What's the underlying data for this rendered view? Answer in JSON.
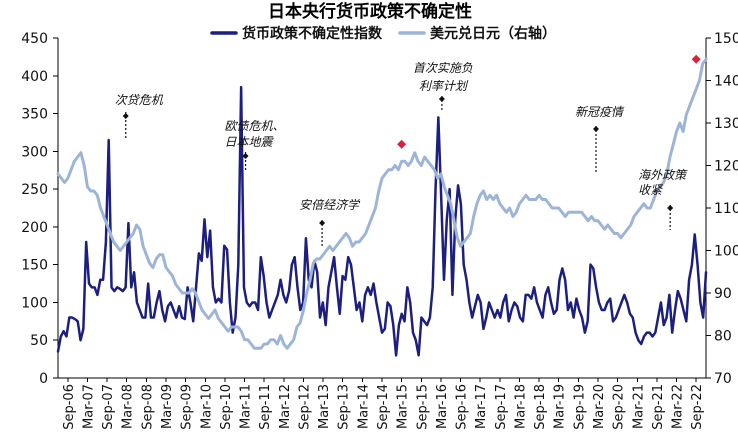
{
  "chart_data": {
    "type": "line",
    "title": "日本央行货币政策不确定性",
    "xlabel": "",
    "ylabel": "",
    "left_axis": {
      "ylim": [
        0,
        450
      ],
      "ticks": [
        0,
        50,
        100,
        150,
        200,
        250,
        300,
        350,
        400,
        450
      ]
    },
    "right_axis": {
      "ylim": [
        70,
        150
      ],
      "ticks": [
        70,
        80,
        90,
        100,
        110,
        120,
        130,
        140,
        150
      ]
    },
    "x_tick_labels": [
      "Sep-06",
      "Mar-07",
      "Sep-07",
      "Mar-08",
      "Sep-08",
      "Mar-09",
      "Sep-09",
      "Mar-10",
      "Sep-10",
      "Mar-11",
      "Sep-11",
      "Mar-12",
      "Sep-12",
      "Mar-13",
      "Sep-13",
      "Mar-14",
      "Sep-14",
      "Mar-15",
      "Sep-15",
      "Mar-16",
      "Sep-16",
      "Mar-17",
      "Sep-17",
      "Mar-18",
      "Sep-18",
      "Mar-19",
      "Sep-19",
      "Mar-20",
      "Sep-20",
      "Mar-21",
      "Sep-21",
      "Mar-22",
      "Sep-22"
    ],
    "legend": {
      "placement": "top",
      "entries": [
        "货币政策不确定性指数",
        "美元兑日元（右轴）"
      ]
    },
    "colors": {
      "index_line": "#1c1f80",
      "usdjpy_line": "#9db4d9",
      "marker": "#e0203a",
      "axis": "#000000"
    },
    "series": [
      {
        "name": "货币政策不确定性指数",
        "axis": "left",
        "values": [
          35,
          55,
          62,
          55,
          80,
          80,
          78,
          75,
          50,
          65,
          180,
          125,
          120,
          120,
          110,
          130,
          130,
          180,
          315,
          120,
          115,
          120,
          118,
          115,
          120,
          205,
          120,
          140,
          100,
          90,
          80,
          80,
          125,
          80,
          80,
          100,
          115,
          90,
          75,
          95,
          100,
          90,
          80,
          95,
          80,
          78,
          120,
          100,
          75,
          120,
          165,
          155,
          210,
          160,
          195,
          120,
          100,
          105,
          100,
          175,
          170,
          100,
          60,
          80,
          150,
          385,
          120,
          100,
          95,
          100,
          100,
          90,
          160,
          135,
          100,
          80,
          90,
          100,
          110,
          130,
          110,
          100,
          115,
          150,
          160,
          120,
          90,
          100,
          185,
          130,
          120,
          155,
          140,
          80,
          100,
          70,
          120,
          140,
          160,
          120,
          85,
          135,
          130,
          160,
          150,
          120,
          90,
          100,
          75,
          110,
          120,
          110,
          125,
          100,
          80,
          60,
          65,
          100,
          95,
          70,
          30,
          70,
          85,
          75,
          120,
          100,
          60,
          50,
          30,
          80,
          75,
          70,
          80,
          120,
          250,
          345,
          240,
          130,
          210,
          250,
          110,
          210,
          255,
          230,
          150,
          130,
          100,
          80,
          95,
          110,
          100,
          65,
          80,
          100,
          90,
          80,
          90,
          80,
          100,
          110,
          75,
          90,
          100,
          95,
          80,
          75,
          110,
          110,
          105,
          120,
          100,
          90,
          80,
          110,
          120,
          100,
          85,
          90,
          130,
          145,
          130,
          90,
          100,
          80,
          105,
          90,
          80,
          60,
          75,
          150,
          145,
          120,
          100,
          90,
          90,
          100,
          105,
          75,
          80,
          90,
          100,
          110,
          100,
          85,
          80,
          60,
          50,
          45,
          55,
          60,
          60,
          55,
          60,
          80,
          100,
          70,
          80,
          110,
          60,
          90,
          115,
          105,
          90,
          75,
          130,
          150,
          190,
          150,
          100,
          80,
          140
        ]
      },
      {
        "name": "美元兑日元（右轴）",
        "axis": "right",
        "values": [
          118,
          117,
          116,
          117,
          119,
          121,
          122,
          123,
          120,
          115,
          114,
          114,
          113,
          110,
          108,
          106,
          104,
          102,
          101,
          100,
          101,
          102,
          103,
          104,
          106,
          105,
          101,
          99,
          97,
          96,
          98,
          99,
          99,
          96,
          95,
          94,
          92,
          91,
          90,
          90,
          90,
          91,
          90,
          88,
          86,
          85,
          84,
          85,
          86,
          84,
          83,
          82,
          81,
          82,
          82,
          82,
          81,
          79,
          79,
          78,
          77,
          77,
          77,
          78,
          78,
          79,
          79,
          78,
          80,
          78,
          77,
          78,
          79,
          82,
          83,
          86,
          90,
          93,
          97,
          98,
          98,
          99,
          100,
          101,
          100,
          101,
          102,
          103,
          104,
          103,
          101,
          102,
          102,
          103,
          104,
          106,
          108,
          110,
          114,
          117,
          118,
          119,
          119,
          120,
          119,
          121,
          121,
          120,
          121,
          123,
          121,
          120,
          122,
          121,
          120,
          119,
          117,
          118,
          115,
          113,
          111,
          107,
          103,
          101,
          102,
          103,
          104,
          108,
          111,
          113,
          114,
          112,
          113,
          112,
          113,
          111,
          110,
          109,
          110,
          108,
          109,
          111,
          112,
          113,
          112,
          112,
          112,
          113,
          112,
          112,
          111,
          110,
          110,
          110,
          109,
          108,
          109,
          109,
          109,
          109,
          109,
          108,
          107,
          108,
          107,
          107,
          106,
          105,
          106,
          105,
          104,
          104,
          103,
          104,
          105,
          106,
          108,
          109,
          110,
          111,
          110,
          110,
          112,
          114,
          115,
          116,
          118,
          122,
          125,
          128,
          130,
          128,
          132,
          134,
          136,
          138,
          140,
          144,
          145
        ]
      }
    ],
    "highlight_markers": [
      {
        "series": "美元兑日元（右轴）",
        "x_label": "Mar-15",
        "value": 125
      },
      {
        "series": "美元兑日元（右轴）",
        "x_label": "Sep-22",
        "value": 145
      }
    ],
    "annotations": [
      {
        "text": "次贷危机",
        "x_label": "Mar-08"
      },
      {
        "text": "欧债危机、",
        "x_label": "Mar-11"
      },
      {
        "text": "日本地震",
        "x_label": "Mar-11"
      },
      {
        "text": "安倍经济学",
        "x_label": "Mar-13"
      },
      {
        "text": "首次实施负",
        "x_label": "Mar-16"
      },
      {
        "text": "利率计划",
        "x_label": "Mar-16"
      },
      {
        "text": "新冠疫情",
        "x_label": "Mar-20"
      },
      {
        "text": "海外政策",
        "x_label": "Sep-22"
      },
      {
        "text": "收紧",
        "x_label": "Sep-22"
      }
    ]
  }
}
